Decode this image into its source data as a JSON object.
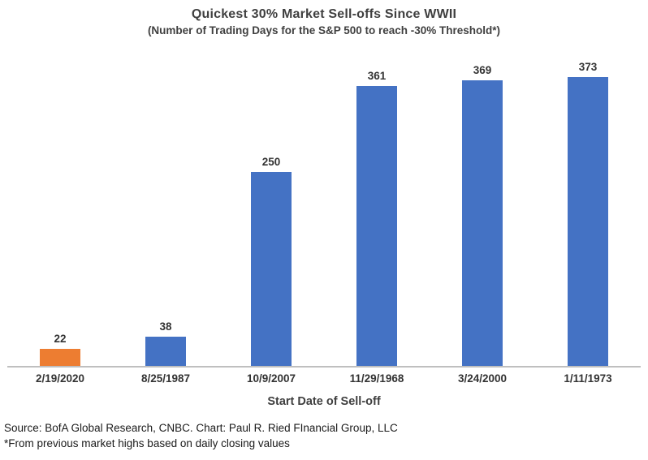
{
  "header": {
    "title": "Quickest 30% Market Sell-offs Since WWII",
    "subtitle": "(Number of Trading Days for the S&P 500 to reach -30% Threshold*)"
  },
  "chart_data": {
    "type": "bar",
    "title": "Quickest 30% Market Sell-offs Since WWII",
    "subtitle": "(Number of Trading Days for the S&P 500 to reach -30% Threshold*)",
    "categories": [
      "2/19/2020",
      "8/25/1987",
      "10/9/2007",
      "11/29/1968",
      "3/24/2000",
      "1/11/1973"
    ],
    "values": [
      22,
      38,
      250,
      361,
      369,
      373
    ],
    "bar_colors": [
      "#ED7D31",
      "#4472C4",
      "#4472C4",
      "#4472C4",
      "#4472C4",
      "#4472C4"
    ],
    "data_labels": [
      22,
      38,
      250,
      361,
      369,
      373
    ],
    "xlabel": "Start Date of Sell-off",
    "ylabel": "",
    "ylim": [
      0,
      390
    ],
    "grid": false,
    "legend": false,
    "yaxis_visible": false
  },
  "footer": {
    "source_line": "Source: BofA Global Research, CNBC. Chart: Paul R. Ried FInancial Group, LLC",
    "note_line": "*From previous market highs based on daily closing values"
  },
  "colors": {
    "highlight_orange": "#ED7D31",
    "series_blue": "#4472C4",
    "axis_line": "#BFBFBF",
    "text_dark": "#3F3F3F"
  }
}
